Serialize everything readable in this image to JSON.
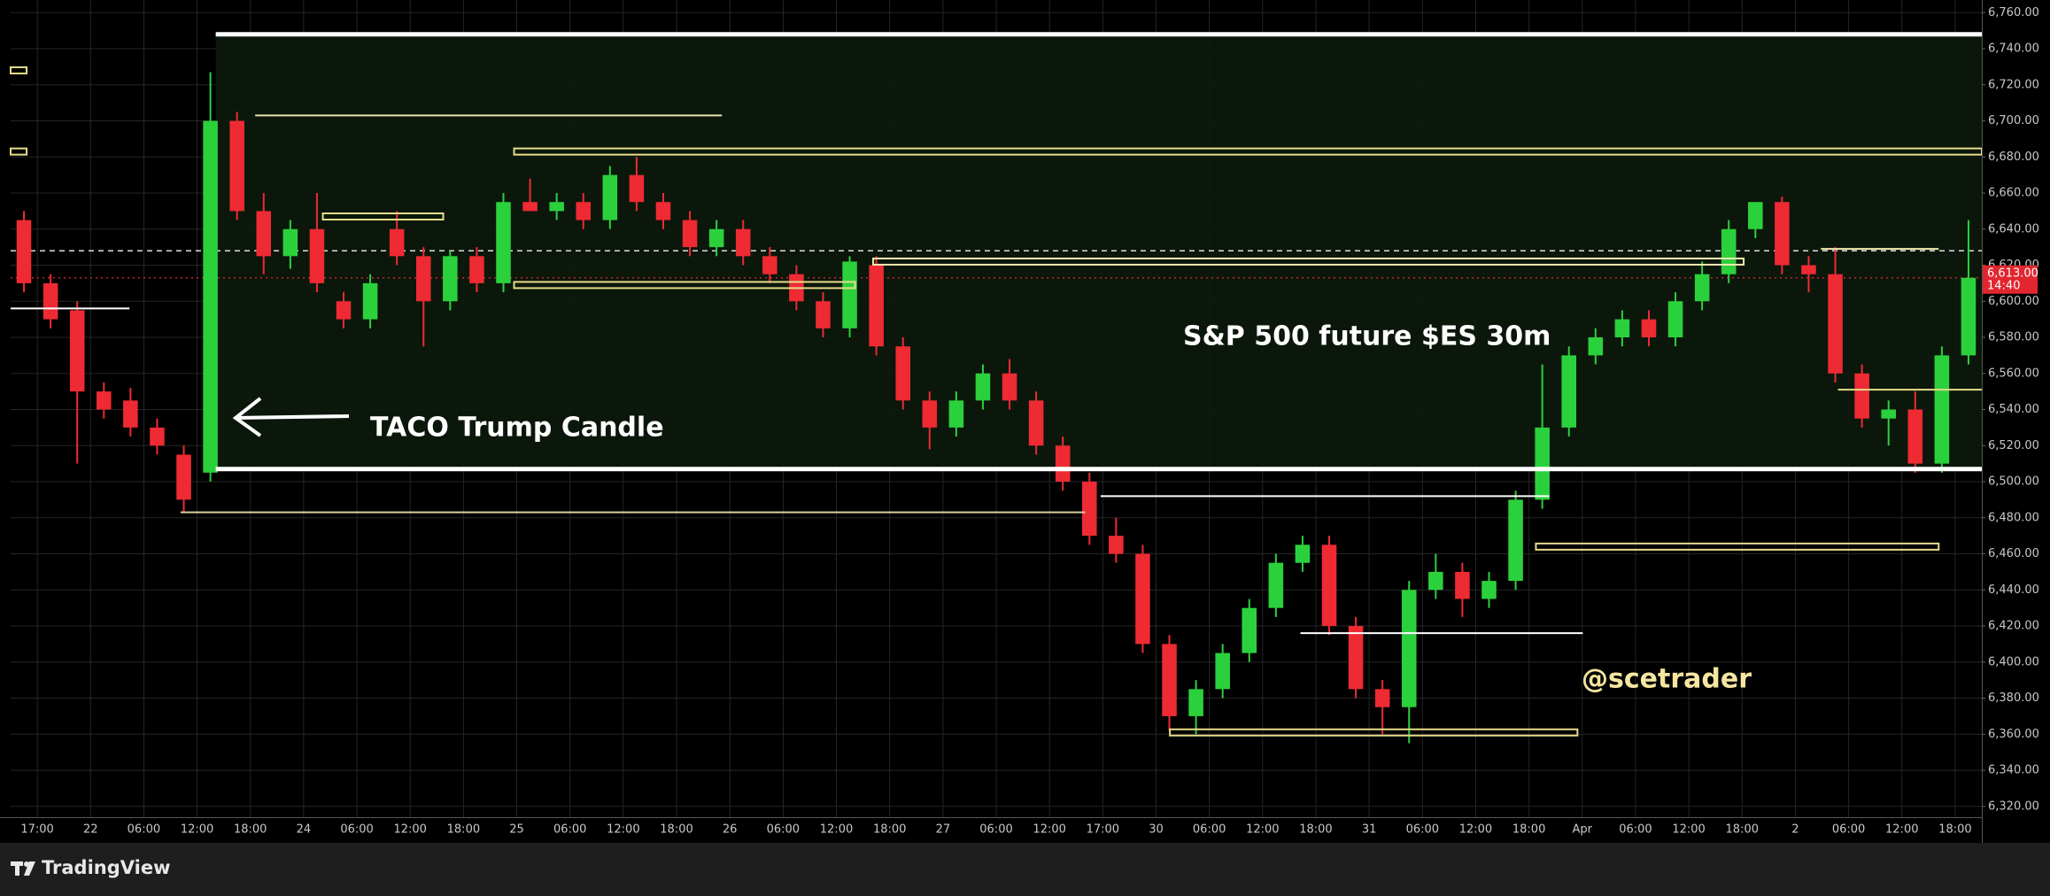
{
  "chart_data": {
    "type": "candlestick",
    "title": "S&P 500 future $ES 30m",
    "annotations": [
      "TACO Trump Candle",
      "@scetrader"
    ],
    "categories": [
      "17:00",
      "22",
      "06:00",
      "12:00",
      "18:00",
      "24",
      "06:00",
      "12:00",
      "18:00",
      "25",
      "06:00",
      "12:00",
      "18:00",
      "26",
      "06:00",
      "12:00",
      "18:00",
      "27",
      "06:00",
      "12:00",
      "17:00",
      "30",
      "06:00",
      "12:00",
      "18:00",
      "31",
      "06:00",
      "12:00",
      "18:00",
      "Apr",
      "06:00",
      "12:00",
      "18:00",
      "2",
      "06:00",
      "12:00",
      "18:00"
    ],
    "candles": [
      [
        6645,
        6650,
        6605,
        6610
      ],
      [
        6610,
        6615,
        6585,
        6590
      ],
      [
        6595,
        6600,
        6510,
        6550
      ],
      [
        6550,
        6555,
        6535,
        6540
      ],
      [
        6545,
        6552,
        6525,
        6530
      ],
      [
        6530,
        6535,
        6515,
        6520
      ],
      [
        6515,
        6520,
        6483,
        6490
      ],
      [
        6505,
        6727,
        6500,
        6700
      ],
      [
        6700,
        6705,
        6645,
        6650
      ],
      [
        6650,
        6660,
        6615,
        6625
      ],
      [
        6625,
        6645,
        6618,
        6640
      ],
      [
        6640,
        6660,
        6605,
        6610
      ],
      [
        6600,
        6605,
        6585,
        6590
      ],
      [
        6590,
        6615,
        6585,
        6610
      ],
      [
        6640,
        6650,
        6620,
        6625
      ],
      [
        6625,
        6630,
        6575,
        6600
      ],
      [
        6600,
        6628,
        6595,
        6625
      ],
      [
        6625,
        6630,
        6605,
        6610
      ],
      [
        6610,
        6660,
        6605,
        6655
      ],
      [
        6655,
        6668,
        6650,
        6650
      ],
      [
        6650,
        6660,
        6645,
        6655
      ],
      [
        6655,
        6660,
        6640,
        6645
      ],
      [
        6645,
        6675,
        6640,
        6670
      ],
      [
        6670,
        6680,
        6650,
        6655
      ],
      [
        6655,
        6660,
        6640,
        6645
      ],
      [
        6645,
        6650,
        6625,
        6630
      ],
      [
        6630,
        6645,
        6625,
        6640
      ],
      [
        6640,
        6645,
        6620,
        6625
      ],
      [
        6625,
        6630,
        6610,
        6615
      ],
      [
        6615,
        6620,
        6595,
        6600
      ],
      [
        6600,
        6605,
        6580,
        6585
      ],
      [
        6585,
        6625,
        6580,
        6622
      ],
      [
        6620,
        6625,
        6570,
        6575
      ],
      [
        6575,
        6580,
        6540,
        6545
      ],
      [
        6545,
        6550,
        6518,
        6530
      ],
      [
        6530,
        6550,
        6525,
        6545
      ],
      [
        6545,
        6565,
        6540,
        6560
      ],
      [
        6560,
        6568,
        6540,
        6545
      ],
      [
        6545,
        6550,
        6515,
        6520
      ],
      [
        6520,
        6525,
        6495,
        6500
      ],
      [
        6500,
        6505,
        6465,
        6470
      ],
      [
        6470,
        6480,
        6455,
        6460
      ],
      [
        6460,
        6465,
        6405,
        6410
      ],
      [
        6410,
        6415,
        6362,
        6370
      ],
      [
        6370,
        6390,
        6360,
        6385
      ],
      [
        6385,
        6410,
        6380,
        6405
      ],
      [
        6405,
        6435,
        6400,
        6430
      ],
      [
        6430,
        6460,
        6425,
        6455
      ],
      [
        6455,
        6470,
        6450,
        6465
      ],
      [
        6465,
        6470,
        6415,
        6420
      ],
      [
        6420,
        6425,
        6380,
        6385
      ],
      [
        6385,
        6390,
        6360,
        6375
      ],
      [
        6375,
        6445,
        6355,
        6440
      ],
      [
        6440,
        6460,
        6435,
        6450
      ],
      [
        6450,
        6455,
        6425,
        6435
      ],
      [
        6435,
        6450,
        6430,
        6445
      ],
      [
        6445,
        6495,
        6440,
        6490
      ],
      [
        6490,
        6565,
        6485,
        6530
      ],
      [
        6530,
        6575,
        6525,
        6570
      ],
      [
        6570,
        6585,
        6565,
        6580
      ],
      [
        6580,
        6595,
        6575,
        6590
      ],
      [
        6590,
        6595,
        6575,
        6580
      ],
      [
        6580,
        6605,
        6575,
        6600
      ],
      [
        6600,
        6622,
        6595,
        6615
      ],
      [
        6615,
        6645,
        6610,
        6640
      ],
      [
        6640,
        6655,
        6635,
        6655
      ],
      [
        6655,
        6658,
        6615,
        6620
      ],
      [
        6620,
        6625,
        6605,
        6615
      ],
      [
        6615,
        6630,
        6555,
        6560
      ],
      [
        6560,
        6565,
        6530,
        6535
      ],
      [
        6535,
        6545,
        6520,
        6540
      ],
      [
        6540,
        6550,
        6505,
        6510
      ],
      [
        6510,
        6575,
        6505,
        6570
      ],
      [
        6570,
        6645,
        6565,
        6613
      ]
    ],
    "up_color": "#2bd13c",
    "down_color": "#ee2a33",
    "ylim": [
      6314,
      6767
    ],
    "yticks": [
      {
        "value": 6320,
        "label": "6,320.00"
      },
      {
        "value": 6340,
        "label": "6,340.00"
      },
      {
        "value": 6360,
        "label": "6,360.00"
      },
      {
        "value": 6380,
        "label": "6,380.00"
      },
      {
        "value": 6400,
        "label": "6,400.00"
      },
      {
        "value": 6420,
        "label": "6,420.00"
      },
      {
        "value": 6440,
        "label": "6,440.00"
      },
      {
        "value": 6460,
        "label": "6,460.00"
      },
      {
        "value": 6480,
        "label": "6,480.00"
      },
      {
        "value": 6500,
        "label": "6,500.00"
      },
      {
        "value": 6520,
        "label": "6,520.00"
      },
      {
        "value": 6540,
        "label": "6,540.00"
      },
      {
        "value": 6560,
        "label": "6,560.00"
      },
      {
        "value": 6580,
        "label": "6,580.00"
      },
      {
        "value": 6600,
        "label": "6,600.00"
      },
      {
        "value": 6620,
        "label": "6,620.00"
      },
      {
        "value": 6640,
        "label": "6,640.00"
      },
      {
        "value": 6660,
        "label": "6,660.00"
      },
      {
        "value": 6680,
        "label": "6,680.00"
      },
      {
        "value": 6700,
        "label": "6,700.00"
      },
      {
        "value": 6720,
        "label": "6,720.00"
      },
      {
        "value": 6740,
        "label": "6,740.00"
      },
      {
        "value": 6760,
        "label": "6,760.00"
      }
    ],
    "grid": true,
    "levels": [
      {
        "value": 6748,
        "span": [
          3.85,
          37
        ],
        "style": "thick",
        "color": "#ffffff"
      },
      {
        "value": 6507,
        "span": [
          3.85,
          37
        ],
        "style": "thick",
        "color": "#ffffff"
      },
      {
        "value": 6703,
        "span": [
          4.59,
          13.35
        ],
        "style": "thin",
        "color": "#e8e2b0"
      },
      {
        "value": 6683,
        "span": [
          9.45,
          37
        ],
        "style": "box",
        "color": "#e6dc8a"
      },
      {
        "value": 6647,
        "span": [
          5.86,
          8.12
        ],
        "style": "box",
        "color": "#e6dc8a"
      },
      {
        "value": 6609,
        "span": [
          9.45,
          15.85
        ],
        "style": "box",
        "color": "#e6dc8a"
      },
      {
        "value": 6622,
        "span": [
          16.19,
          32.53
        ],
        "style": "box",
        "color": "#f2eab0"
      },
      {
        "value": 6629,
        "span": [
          33.98,
          36.19
        ],
        "style": "thin",
        "color": "#f2eab0"
      },
      {
        "value": 6596,
        "span": [
          0,
          2.23
        ],
        "style": "thin",
        "color": "#ffffff"
      },
      {
        "value": 6483,
        "span": [
          3.19,
          20.17
        ],
        "style": "thin",
        "color": "#d8d0a0"
      },
      {
        "value": 6492,
        "span": [
          20.46,
          28.88
        ],
        "style": "thin",
        "color": "#ffffff"
      },
      {
        "value": 6551,
        "span": [
          34.3,
          37
        ],
        "style": "thin",
        "color": "#e6dc8a"
      },
      {
        "value": 6464,
        "span": [
          28.63,
          36.19
        ],
        "style": "box",
        "color": "#e6dc8a"
      },
      {
        "value": 6416,
        "span": [
          24.21,
          29.51
        ],
        "style": "thin",
        "color": "#ffffff"
      },
      {
        "value": 6361,
        "span": [
          21.76,
          29.41
        ],
        "style": "box",
        "color": "#e6dc8a"
      },
      {
        "value": 6728,
        "span": [
          0,
          0.3
        ],
        "style": "box",
        "color": "#e6dc8a"
      },
      {
        "value": 6683,
        "span": [
          0,
          0.3
        ],
        "style": "box",
        "color": "#e6dc8a"
      }
    ],
    "prev_line": 6628,
    "last_price": {
      "value": 6613,
      "label": "6,613.00"
    },
    "countdown": "14:40"
  },
  "footer": {
    "brand": "TradingView"
  }
}
